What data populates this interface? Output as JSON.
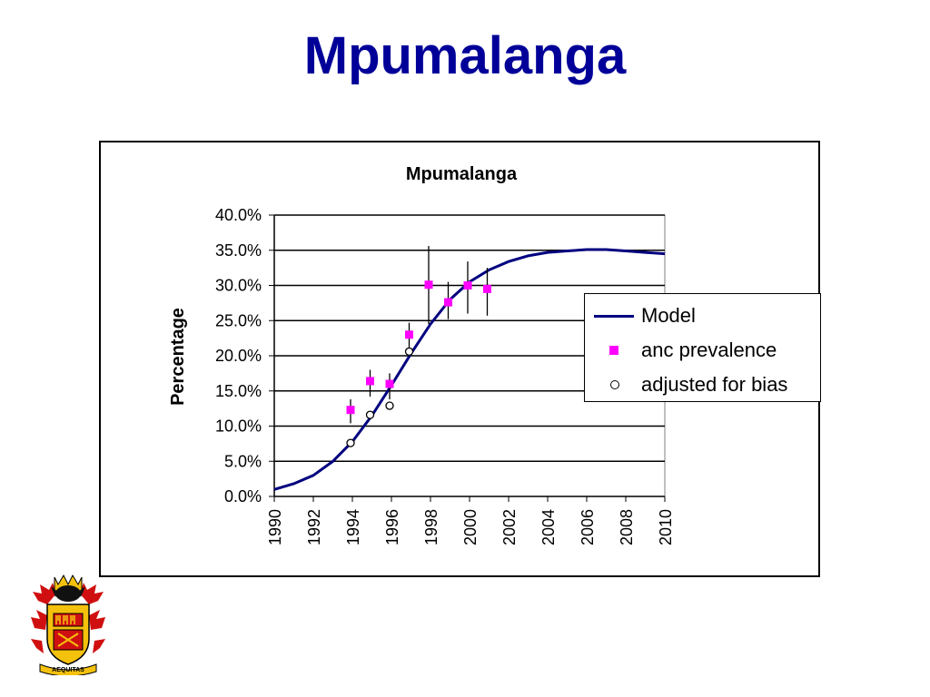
{
  "slide": {
    "title": "Mpumalanga"
  },
  "chart_data": {
    "type": "line",
    "title": "Mpumalanga",
    "xlabel": "",
    "ylabel": "Percentage",
    "xlim": [
      1990,
      2010
    ],
    "ylim": [
      0,
      40
    ],
    "x_ticks": [
      "1990",
      "1992",
      "1994",
      "1996",
      "1998",
      "2000",
      "2002",
      "2004",
      "2006",
      "2008",
      "2010"
    ],
    "y_ticks": [
      "0.0%",
      "5.0%",
      "10.0%",
      "15.0%",
      "20.0%",
      "25.0%",
      "30.0%",
      "35.0%",
      "40.0%"
    ],
    "grid": true,
    "legend_position": "right",
    "series": [
      {
        "name": "Model",
        "style": "line",
        "color": "#000080",
        "x": [
          1990,
          1991,
          1992,
          1993,
          1994,
          1995,
          1996,
          1997,
          1998,
          1999,
          2000,
          2001,
          2002,
          2003,
          2004,
          2005,
          2006,
          2007,
          2008,
          2009,
          2010
        ],
        "y": [
          1.0,
          1.8,
          3.0,
          5.0,
          7.8,
          11.5,
          15.8,
          20.3,
          24.5,
          28.0,
          30.5,
          32.2,
          33.4,
          34.2,
          34.7,
          34.9,
          35.1,
          35.1,
          34.9,
          34.7,
          34.5
        ]
      },
      {
        "name": "anc prevalence",
        "style": "marker-square",
        "color": "#FF00FF",
        "x": [
          1994,
          1995,
          1996,
          1997,
          1998,
          1999,
          2000,
          2001
        ],
        "y": [
          12.3,
          16.4,
          16.0,
          23.0,
          30.1,
          27.6,
          30.0,
          29.5
        ],
        "err_low": [
          10.4,
          14.2,
          13.8,
          20.8,
          24.5,
          25.2,
          26.0,
          25.7
        ],
        "err_high": [
          13.8,
          18.0,
          17.5,
          24.7,
          35.6,
          30.5,
          33.4,
          32.5
        ]
      },
      {
        "name": "adjusted for bias",
        "style": "marker-circle",
        "color": "#000000",
        "x": [
          1994,
          1995,
          1996,
          1997
        ],
        "y": [
          7.6,
          11.6,
          12.9,
          20.6
        ]
      }
    ]
  },
  "logo": {
    "name": "crest-logo",
    "motto": "AEQUITAS"
  }
}
